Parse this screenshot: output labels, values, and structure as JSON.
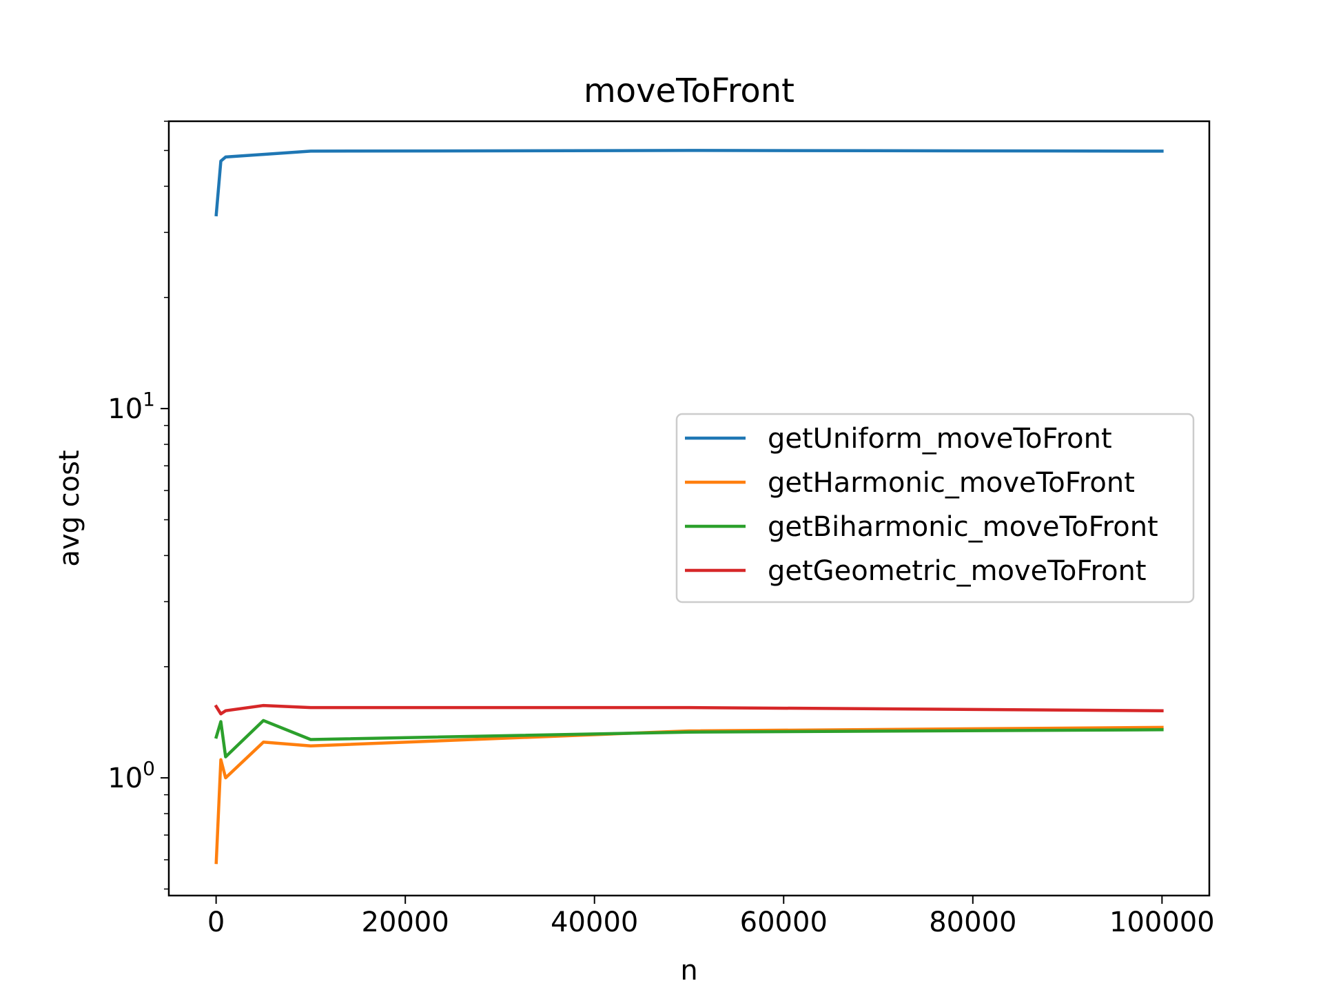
{
  "chart_data": {
    "type": "line",
    "title": "moveToFront",
    "xlabel": "n",
    "ylabel": "avg cost",
    "yscale": "log",
    "xlim": [
      -5000,
      105000
    ],
    "ylim": [
      0.48,
      60
    ],
    "xticks": [
      0,
      20000,
      40000,
      60000,
      80000,
      100000
    ],
    "xtick_labels": [
      "0",
      "20000",
      "40000",
      "60000",
      "80000",
      "100000"
    ],
    "yticks_major": [
      1,
      10
    ],
    "ytick_base": "10",
    "ytick_exponents": [
      "0",
      "1"
    ],
    "grid": false,
    "legend_position": "center-right",
    "x": [
      10,
      500,
      1000,
      5000,
      10000,
      50000,
      100000
    ],
    "series": [
      {
        "name": "getUniform_moveToFront",
        "color": "#1f77b4",
        "values": [
          33.5,
          46.8,
          48.0,
          48.8,
          49.8,
          50.0,
          49.8
        ]
      },
      {
        "name": "getHarmonic_moveToFront",
        "color": "#ff7f0e",
        "values": [
          0.59,
          1.12,
          1.0,
          1.25,
          1.22,
          1.34,
          1.37
        ]
      },
      {
        "name": "getBiharmonic_moveToFront",
        "color": "#2ca02c",
        "values": [
          1.29,
          1.42,
          1.14,
          1.43,
          1.27,
          1.33,
          1.35
        ]
      },
      {
        "name": "getGeometric_moveToFront",
        "color": "#d62728",
        "values": [
          1.56,
          1.49,
          1.52,
          1.57,
          1.55,
          1.55,
          1.52
        ]
      }
    ]
  }
}
